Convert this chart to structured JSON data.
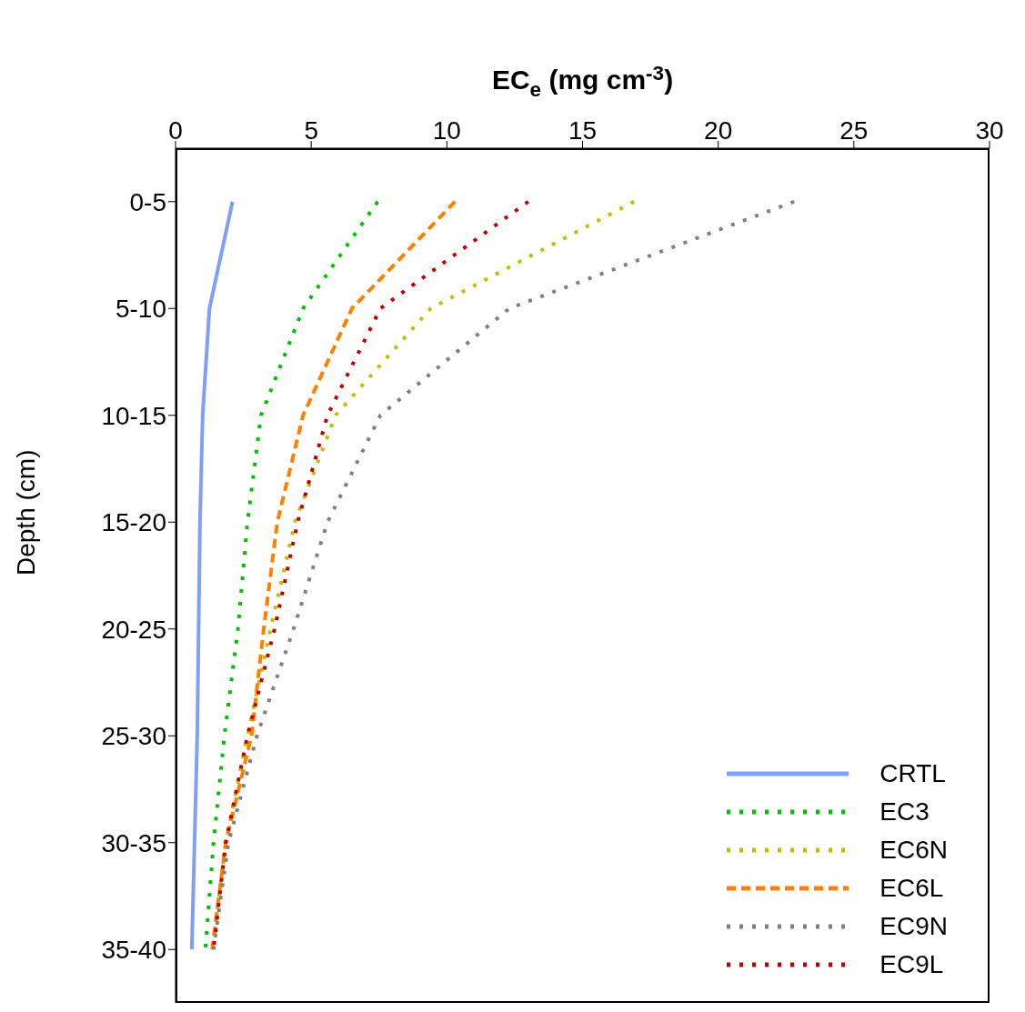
{
  "chart_data": {
    "type": "line",
    "orientation": "horizontal",
    "xlabel": "EC$_{e}$ (mg cm$^{-3}$)",
    "ylabel": "Depth (cm)",
    "categories": [
      "0-5",
      "5-10",
      "10-15",
      "15-20",
      "20-25",
      "25-30",
      "30-35",
      "35-40"
    ],
    "xlim": [
      0,
      30
    ],
    "xticks": [
      0,
      5,
      10,
      15,
      20,
      25,
      30
    ],
    "legend": "bottom right",
    "grid": false,
    "marker": "none",
    "series": [
      {
        "name": "CRTL",
        "color": "#80a0f8",
        "line_style": "solid",
        "values": [
          2.1,
          1.25,
          1.0,
          0.9,
          0.85,
          0.8,
          0.7,
          0.6
        ]
      },
      {
        "name": "EC3",
        "color": "#00c000",
        "line_style": "dotted",
        "values": [
          7.45,
          4.7,
          3.15,
          2.65,
          2.3,
          1.8,
          1.4,
          1.1
        ]
      },
      {
        "name": "EC6N",
        "color": "#c0c000",
        "line_style": "dotted",
        "values": [
          16.9,
          9.4,
          5.9,
          4.4,
          3.5,
          2.65,
          1.85,
          1.35
        ]
      },
      {
        "name": "EC6L",
        "color": "#ff8000",
        "line_style": "dashed",
        "values": [
          10.3,
          6.5,
          4.7,
          3.75,
          3.25,
          2.8,
          1.85,
          1.35
        ]
      },
      {
        "name": "EC9N",
        "color": "#808080",
        "line_style": "dotted",
        "values": [
          22.8,
          12.3,
          7.55,
          5.6,
          4.35,
          3.0,
          1.95,
          1.4
        ]
      },
      {
        "name": "EC9L",
        "color": "#c00000",
        "line_style": "dotted",
        "values": [
          13.0,
          7.55,
          5.6,
          4.5,
          3.65,
          2.65,
          1.85,
          1.4
        ]
      }
    ]
  }
}
